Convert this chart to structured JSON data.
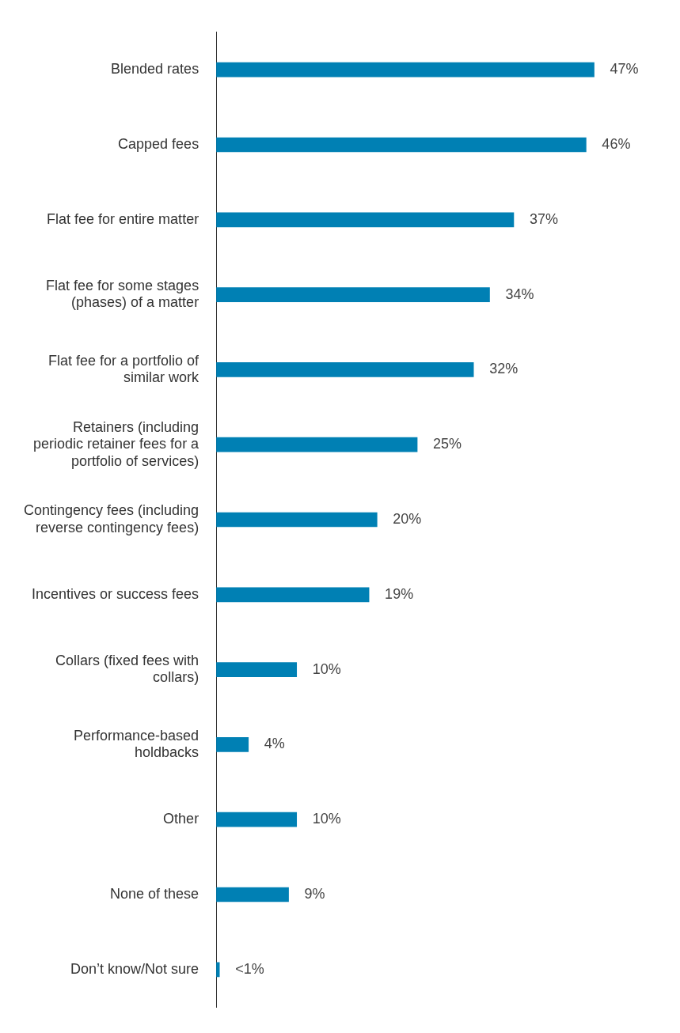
{
  "chart_data": {
    "type": "bar",
    "orientation": "horizontal",
    "categories": [
      "Blended rates",
      "Capped fees",
      "Flat fee for entire matter",
      "Flat fee for some stages (phases) of a matter",
      "Flat fee for a portfolio of similar work",
      "Retainers (including periodic retainer fees for a portfolio of services)",
      "Contingency fees (including reverse contingency fees)",
      "Incentives or success fees",
      "Collars (fixed fees with collars)",
      "Performance-based holdbacks",
      "Other",
      "None of these",
      "Don’t know/Not sure"
    ],
    "values": [
      47,
      46,
      37,
      34,
      32,
      25,
      20,
      19,
      10,
      4,
      10,
      9,
      0.4
    ],
    "value_labels": [
      "47%",
      "46%",
      "37%",
      "34%",
      "32%",
      "25%",
      "20%",
      "19%",
      "10%",
      "4%",
      "10%",
      "9%",
      "<1%"
    ],
    "color": "#0080b4",
    "legend": false
  }
}
